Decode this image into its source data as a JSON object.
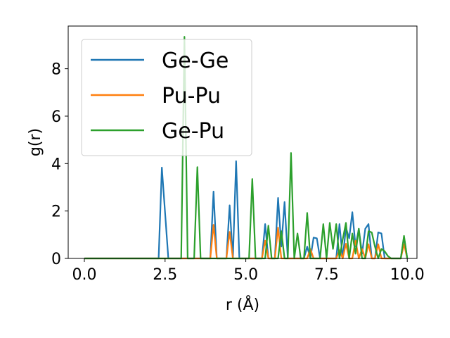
{
  "chart_data": {
    "type": "line",
    "title": "",
    "xlabel": "r (Å)",
    "ylabel": "g(r)",
    "xlim": [
      -0.5,
      10.3
    ],
    "ylim": [
      0,
      9.8
    ],
    "xticks": [
      "0.0",
      "2.5",
      "5.0",
      "7.5",
      "10.0"
    ],
    "xtick_values": [
      0,
      2.5,
      5,
      7.5,
      10
    ],
    "yticks": [
      "0",
      "2",
      "4",
      "6",
      "8"
    ],
    "ytick_values": [
      0,
      2,
      4,
      6,
      8
    ],
    "grid": false,
    "legend_position": "upper-left",
    "series": [
      {
        "name": "Ge-Ge",
        "color": "#1f77b4",
        "x": [
          0,
          2.3,
          2.4,
          2.6,
          3.9,
          4.0,
          4.1,
          4.4,
          4.5,
          4.6,
          4.6,
          4.7,
          4.8,
          5.5,
          5.6,
          5.7,
          5.9,
          6.0,
          6.1,
          6.2,
          6.3,
          6.8,
          6.9,
          7.0,
          7.1,
          7.2,
          7.3,
          7.8,
          7.9,
          8.0,
          8.1,
          8.2,
          8.3,
          8.4,
          8.5,
          8.6,
          8.7,
          8.8,
          8.9,
          9.0,
          9.1,
          9.2,
          9.3,
          9.4,
          9.8,
          9.9,
          10.0
        ],
        "y": [
          0,
          0,
          3.83,
          0,
          0,
          2.82,
          0,
          0,
          2.24,
          0,
          0,
          4.1,
          0,
          0,
          1.45,
          0,
          0,
          2.55,
          0.5,
          2.38,
          0,
          0,
          0.5,
          0,
          0.88,
          0.85,
          0,
          0,
          1.45,
          0,
          1.3,
          0.85,
          1.95,
          0.5,
          1.25,
          0.2,
          1.25,
          1.45,
          0,
          0,
          1.1,
          1.05,
          0,
          0,
          0,
          0.9,
          0
        ]
      },
      {
        "name": "Pu-Pu",
        "color": "#ff7f0e",
        "x": [
          0,
          3.9,
          4.0,
          4.1,
          4.4,
          4.5,
          4.6,
          5.5,
          5.6,
          5.7,
          5.9,
          6.0,
          6.1,
          6.9,
          7.0,
          7.1,
          7.8,
          7.9,
          8.0,
          8.1,
          8.2,
          8.3,
          8.4,
          8.5,
          8.6,
          8.7,
          8.8,
          8.9,
          9.0,
          9.1,
          9.2,
          9.3,
          9.8,
          9.9,
          10.0
        ],
        "y": [
          0,
          0,
          1.42,
          0,
          0,
          1.12,
          0,
          0,
          0.75,
          0,
          0,
          1.3,
          0,
          0,
          0.4,
          0,
          0,
          0.35,
          0,
          0.62,
          0,
          0,
          0.75,
          0,
          0.4,
          0,
          0.6,
          0,
          0,
          0.6,
          0,
          0,
          0,
          0.6,
          0
        ]
      },
      {
        "name": "Ge-Pu",
        "color": "#2ca02c",
        "x": [
          0,
          3.0,
          3.1,
          3.2,
          3.4,
          3.5,
          3.6,
          5.1,
          5.2,
          5.3,
          5.6,
          5.7,
          5.8,
          6.0,
          6.1,
          6.2,
          6.3,
          6.4,
          6.5,
          6.6,
          6.7,
          6.8,
          6.9,
          7.0,
          7.3,
          7.4,
          7.5,
          7.6,
          7.7,
          7.8,
          7.9,
          8.0,
          8.1,
          8.2,
          8.3,
          8.4,
          8.5,
          8.6,
          8.7,
          8.8,
          8.9,
          9.0,
          9.1,
          9.2,
          9.3,
          9.4,
          9.5,
          9.8,
          9.9,
          10.0
        ],
        "y": [
          0,
          0,
          9.35,
          0,
          0,
          3.85,
          0,
          0,
          3.35,
          0,
          0,
          1.38,
          0,
          0,
          1.15,
          0,
          0,
          4.45,
          0,
          1.05,
          0,
          0,
          1.92,
          0,
          0,
          1.45,
          0,
          1.5,
          0.4,
          1.45,
          0,
          0.8,
          1.5,
          0,
          1.05,
          0.2,
          1.25,
          0,
          0,
          1.15,
          1.1,
          0.5,
          0,
          0.4,
          0.3,
          0.1,
          0,
          0,
          0.95,
          0
        ]
      }
    ]
  }
}
